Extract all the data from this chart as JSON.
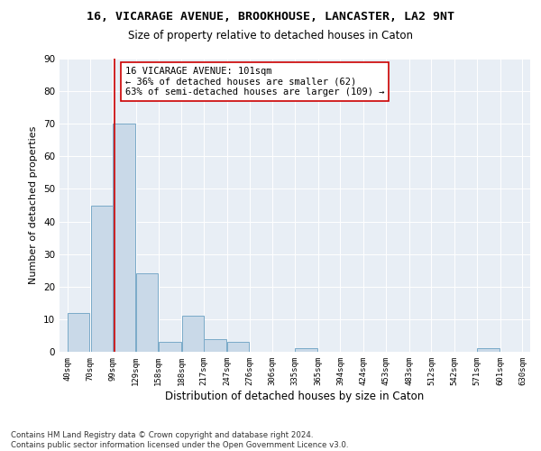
{
  "title1": "16, VICARAGE AVENUE, BROOKHOUSE, LANCASTER, LA2 9NT",
  "title2": "Size of property relative to detached houses in Caton",
  "xlabel": "Distribution of detached houses by size in Caton",
  "ylabel": "Number of detached properties",
  "bar_left_edges": [
    40,
    70,
    99,
    129,
    158,
    188,
    217,
    247,
    276,
    306,
    335,
    365,
    394,
    424,
    453,
    483,
    512,
    542,
    571,
    601
  ],
  "bar_widths": [
    29,
    29,
    30,
    29,
    30,
    29,
    30,
    29,
    30,
    29,
    30,
    29,
    30,
    29,
    30,
    29,
    29,
    29,
    30,
    29
  ],
  "bar_heights": [
    12,
    45,
    70,
    24,
    3,
    11,
    4,
    3,
    0,
    0,
    1,
    0,
    0,
    0,
    0,
    0,
    0,
    0,
    1,
    0
  ],
  "bar_color": "#c9d9e8",
  "bar_edge_color": "#7aaac8",
  "vline_x": 101,
  "vline_color": "#cc0000",
  "annotation_line1": "16 VICARAGE AVENUE: 101sqm",
  "annotation_line2": "← 36% of detached houses are smaller (62)",
  "annotation_line3": "63% of semi-detached houses are larger (109) →",
  "annotation_box_color": "#ffffff",
  "annotation_border_color": "#cc0000",
  "yticks": [
    0,
    10,
    20,
    30,
    40,
    50,
    60,
    70,
    80,
    90
  ],
  "ylim": [
    0,
    90
  ],
  "xlim": [
    30,
    640
  ],
  "tick_labels": [
    "40sqm",
    "70sqm",
    "99sqm",
    "129sqm",
    "158sqm",
    "188sqm",
    "217sqm",
    "247sqm",
    "276sqm",
    "306sqm",
    "335sqm",
    "365sqm",
    "394sqm",
    "424sqm",
    "453sqm",
    "483sqm",
    "512sqm",
    "542sqm",
    "571sqm",
    "601sqm",
    "630sqm"
  ],
  "tick_positions": [
    40,
    70,
    99,
    129,
    158,
    188,
    217,
    247,
    276,
    306,
    335,
    365,
    394,
    424,
    453,
    483,
    512,
    542,
    571,
    601,
    630
  ],
  "background_color": "#e8eef5",
  "footer_text": "Contains HM Land Registry data © Crown copyright and database right 2024.\nContains public sector information licensed under the Open Government Licence v3.0.",
  "title1_fontsize": 9.5,
  "title2_fontsize": 8.5,
  "xlabel_fontsize": 8.5,
  "ylabel_fontsize": 8,
  "annotation_fontsize": 7.5,
  "footer_fontsize": 6.2
}
